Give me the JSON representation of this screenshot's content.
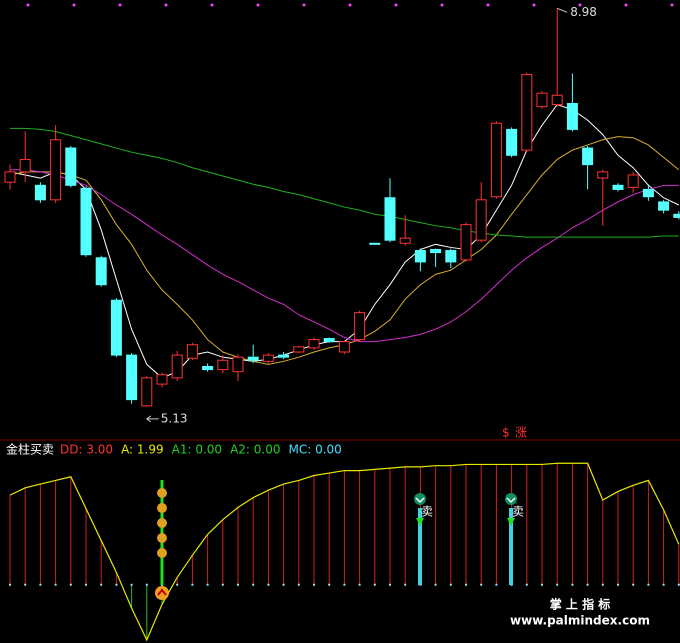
{
  "chart_data": [
    {
      "type": "candlestick",
      "ylim": [
        4.81,
        9.06
      ],
      "up_color": "#ff3232",
      "down_color": "#54ffff",
      "candles": {
        "open": [
          7.3,
          7.4,
          7.27,
          7.13,
          7.63,
          7.24,
          6.57,
          6.16,
          5.63,
          5.14,
          5.35,
          5.41,
          5.6,
          5.52,
          5.49,
          5.47,
          5.61,
          5.57,
          5.63,
          5.66,
          5.7,
          5.79,
          5.66,
          5.78,
          6.71,
          7.15,
          6.71,
          6.64,
          6.65,
          6.64,
          6.55,
          6.74,
          7.16,
          7.81,
          7.61,
          8.03,
          8.05,
          8.06,
          7.63,
          7.34,
          7.27,
          7.25,
          7.23,
          7.11,
          6.99
        ],
        "high": [
          7.47,
          7.79,
          7.3,
          7.85,
          7.65,
          7.26,
          6.59,
          6.18,
          5.65,
          5.43,
          5.46,
          5.67,
          5.75,
          5.55,
          5.63,
          5.64,
          5.73,
          5.65,
          5.66,
          5.72,
          5.8,
          5.8,
          5.77,
          6.06,
          6.71,
          7.34,
          6.98,
          6.66,
          6.66,
          6.66,
          6.91,
          7.3,
          7.89,
          7.83,
          8.36,
          8.18,
          8.98,
          8.35,
          7.65,
          7.42,
          7.29,
          7.4,
          7.28,
          7.13,
          7.02
        ],
        "low": [
          7.23,
          7.3,
          7.1,
          7.1,
          7.25,
          6.58,
          6.29,
          5.61,
          5.16,
          5.13,
          5.32,
          5.38,
          5.58,
          5.47,
          5.45,
          5.38,
          5.55,
          5.55,
          5.59,
          5.65,
          5.68,
          5.75,
          5.64,
          5.76,
          6.7,
          6.72,
          6.69,
          6.44,
          6.48,
          6.47,
          6.53,
          6.72,
          7.14,
          7.54,
          7.59,
          8.01,
          8.03,
          7.79,
          7.23,
          6.88,
          7.21,
          7.2,
          7.12,
          7.0,
          6.94
        ],
        "close": [
          7.4,
          7.52,
          7.13,
          7.71,
          7.27,
          6.6,
          6.31,
          5.63,
          5.2,
          5.41,
          5.44,
          5.63,
          5.73,
          5.49,
          5.58,
          5.61,
          5.58,
          5.63,
          5.61,
          5.71,
          5.78,
          5.76,
          5.76,
          6.04,
          6.7,
          6.74,
          6.76,
          6.53,
          6.62,
          6.53,
          6.89,
          7.13,
          7.87,
          7.56,
          8.34,
          8.16,
          8.14,
          7.81,
          7.47,
          7.4,
          7.23,
          7.37,
          7.16,
          7.03,
          6.96
        ]
      },
      "lines": [
        {
          "color": "#ffffff",
          "values": [
            7.4,
            7.37,
            7.34,
            7.4,
            7.37,
            7.23,
            6.84,
            6.36,
            5.88,
            5.54,
            5.41,
            5.47,
            5.63,
            5.66,
            5.61,
            5.59,
            5.57,
            5.59,
            5.63,
            5.68,
            5.73,
            5.76,
            5.76,
            5.88,
            6.12,
            6.31,
            6.53,
            6.65,
            6.7,
            6.67,
            6.65,
            6.79,
            7.03,
            7.27,
            7.61,
            7.85,
            8.05,
            8.0,
            7.9,
            7.76,
            7.56,
            7.44,
            7.27,
            7.15,
            7.08
          ]
        },
        {
          "color": "#d8b030",
          "values": [
            7.37,
            7.4,
            7.4,
            7.4,
            7.37,
            7.32,
            7.13,
            6.89,
            6.7,
            6.45,
            6.26,
            6.12,
            5.97,
            5.78,
            5.66,
            5.61,
            5.57,
            5.54,
            5.57,
            5.61,
            5.66,
            5.7,
            5.73,
            5.78,
            5.86,
            5.97,
            6.17,
            6.31,
            6.41,
            6.45,
            6.55,
            6.65,
            6.79,
            6.99,
            7.18,
            7.37,
            7.52,
            7.61,
            7.66,
            7.71,
            7.74,
            7.73,
            7.66,
            7.54,
            7.42
          ]
        },
        {
          "color": "#d030d0",
          "values": [
            7.42,
            7.42,
            7.4,
            7.37,
            7.32,
            7.27,
            7.18,
            7.08,
            6.99,
            6.89,
            6.79,
            6.7,
            6.6,
            6.5,
            6.41,
            6.34,
            6.26,
            6.18,
            6.12,
            6.02,
            5.95,
            5.88,
            5.8,
            5.76,
            5.76,
            5.78,
            5.8,
            5.83,
            5.88,
            5.95,
            6.05,
            6.17,
            6.31,
            6.45,
            6.57,
            6.67,
            6.76,
            6.86,
            6.94,
            7.03,
            7.11,
            7.18,
            7.23,
            7.27,
            7.27
          ]
        },
        {
          "color": "#20b020",
          "values": [
            7.82,
            7.82,
            7.81,
            7.79,
            7.75,
            7.71,
            7.67,
            7.63,
            7.59,
            7.56,
            7.53,
            7.49,
            7.44,
            7.4,
            7.36,
            7.32,
            7.28,
            7.25,
            7.21,
            7.18,
            7.14,
            7.1,
            7.06,
            7.03,
            6.99,
            6.97,
            6.94,
            6.91,
            6.88,
            6.86,
            6.83,
            6.81,
            6.79,
            6.78,
            6.77,
            6.77,
            6.77,
            6.77,
            6.77,
            6.77,
            6.77,
            6.77,
            6.77,
            6.78,
            6.78
          ]
        }
      ],
      "high_label": 8.98,
      "low_label": 5.13,
      "marker": {
        "icon": "$",
        "label": "涨"
      }
    },
    {
      "type": "indicator",
      "title": "金柱买卖",
      "ylim": [
        -45,
        100
      ],
      "line_color": "#e8e800",
      "legend": [
        {
          "text": "DD: 3.00",
          "color": "#ff3232"
        },
        {
          "text": "A: 1.99",
          "color": "#e8e800"
        },
        {
          "text": "A1: 0.00",
          "color": "#20d020"
        },
        {
          "text": "A2: 0.00",
          "color": "#20d020"
        },
        {
          "text": "MC: 0.00",
          "color": "#40e0ff"
        }
      ],
      "values": [
        73,
        79,
        82,
        85,
        88,
        62,
        36,
        10,
        -19,
        -45,
        -16,
        6,
        24,
        41,
        53,
        63,
        71,
        77,
        82,
        85,
        89,
        91,
        93,
        93,
        94,
        95,
        96,
        96,
        97,
        97,
        98,
        98,
        98,
        98,
        98,
        98,
        99,
        99,
        99,
        69,
        76,
        81,
        85,
        61,
        33
      ],
      "signal_labels": [
        "卖",
        "卖"
      ]
    }
  ],
  "watermark": {
    "title": "掌 上 指 标",
    "url": "www.palmindex.com"
  }
}
